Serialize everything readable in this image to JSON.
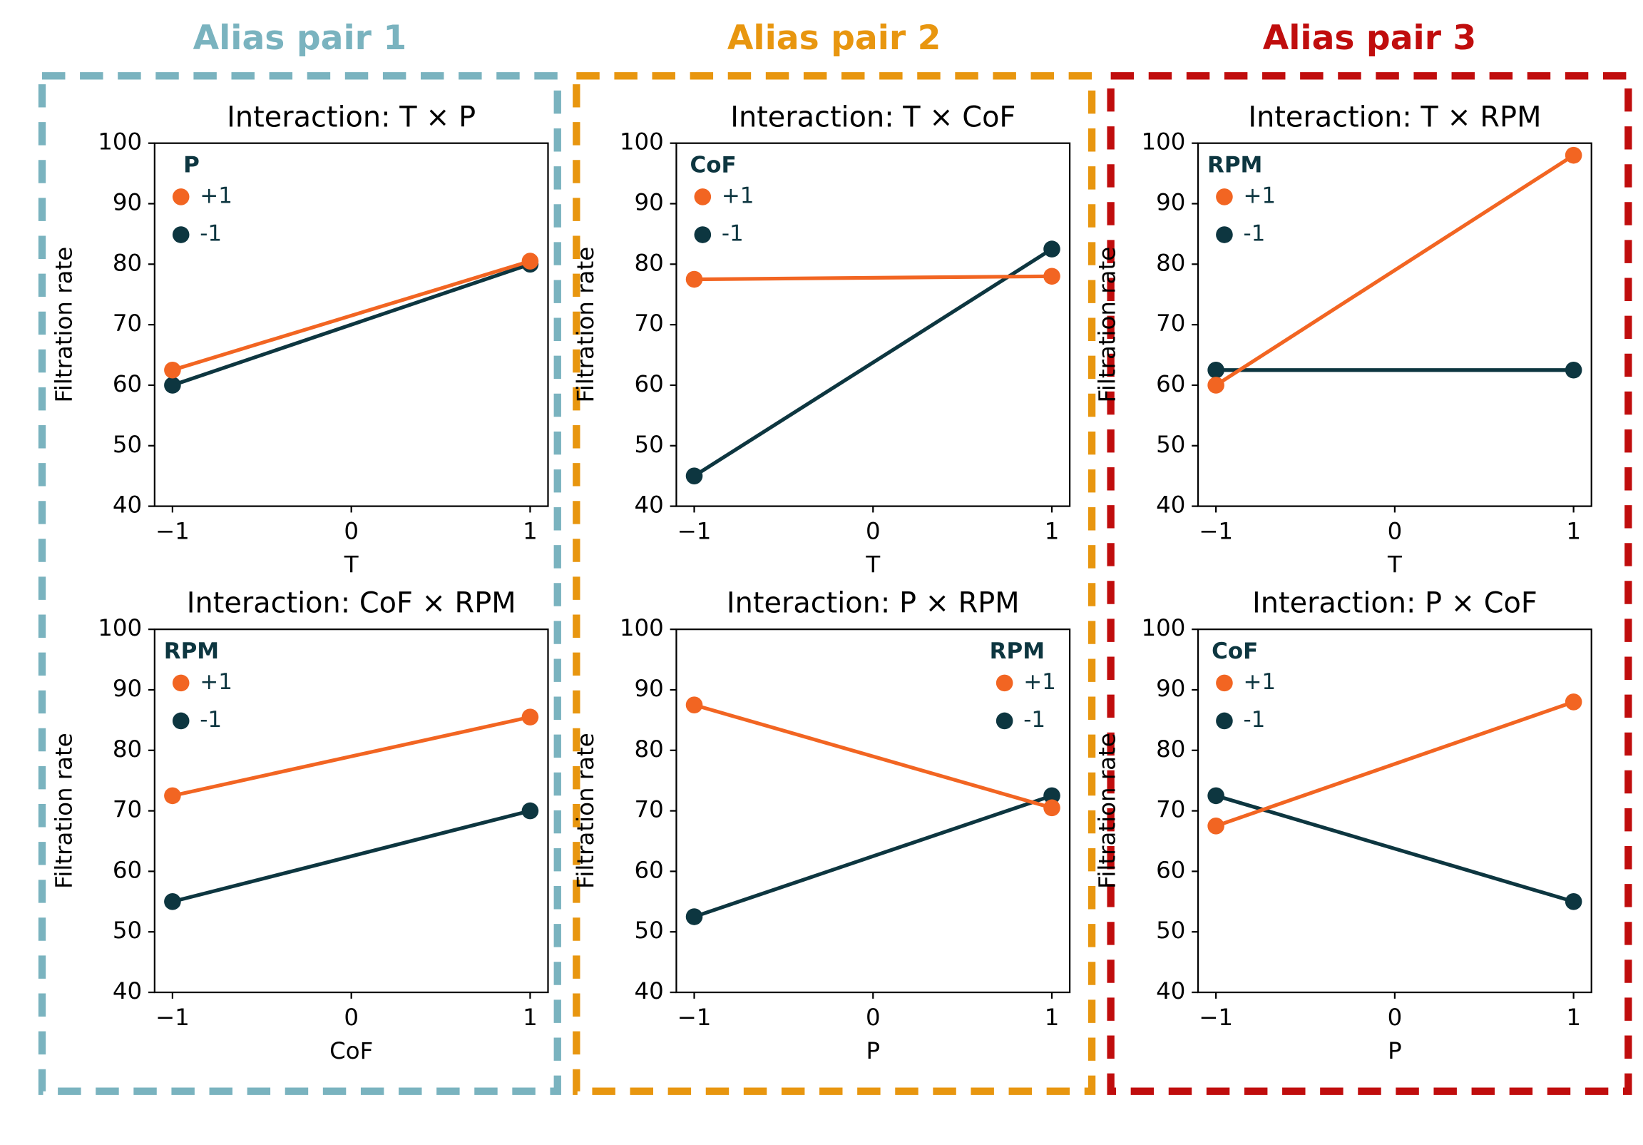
{
  "groups": [
    {
      "title": "Alias pair 1",
      "color": "#7ab3bf"
    },
    {
      "title": "Alias pair 2",
      "color": "#e8960f"
    },
    {
      "title": "Alias pair 3",
      "color": "#c00d0d"
    }
  ],
  "chart_data": [
    {
      "type": "line",
      "title": "Interaction: T × P",
      "x_label": "T",
      "y_label": "Filtration rate",
      "legend_title": "P",
      "legend": "upper left",
      "x": [
        -1,
        1
      ],
      "xlim": [
        -1.1,
        1.1
      ],
      "xticks": [
        {
          "value": -1,
          "label": "−1"
        },
        0,
        1
      ],
      "ylim": [
        40,
        100
      ],
      "yticks": [
        40,
        50,
        60,
        70,
        80,
        90,
        100
      ],
      "series": [
        {
          "name": "+1",
          "color": "#f26522",
          "values": [
            62.5,
            80.5
          ]
        },
        {
          "name": "-1",
          "color": "#0d3640",
          "values": [
            60,
            80
          ]
        }
      ]
    },
    {
      "type": "line",
      "title": "Interaction: T × CoF",
      "x_label": "T",
      "y_label": "Filtration rate",
      "legend_title": "CoF",
      "legend": "upper left",
      "x": [
        -1,
        1
      ],
      "xlim": [
        -1.1,
        1.1
      ],
      "xticks": [
        {
          "value": -1,
          "label": "−1"
        },
        0,
        1
      ],
      "ylim": [
        40,
        100
      ],
      "yticks": [
        40,
        50,
        60,
        70,
        80,
        90,
        100
      ],
      "series": [
        {
          "name": "+1",
          "color": "#f26522",
          "values": [
            77.5,
            78
          ]
        },
        {
          "name": "-1",
          "color": "#0d3640",
          "values": [
            45,
            82.5
          ]
        }
      ]
    },
    {
      "type": "line",
      "title": "Interaction: T × RPM",
      "x_label": "T",
      "y_label": "Filtration rate",
      "legend_title": "RPM",
      "legend": "upper left",
      "x": [
        -1,
        1
      ],
      "xlim": [
        -1.1,
        1.1
      ],
      "xticks": [
        {
          "value": -1,
          "label": "−1"
        },
        0,
        1
      ],
      "ylim": [
        40,
        100
      ],
      "yticks": [
        40,
        50,
        60,
        70,
        80,
        90,
        100
      ],
      "series": [
        {
          "name": "+1",
          "color": "#f26522",
          "values": [
            60,
            98
          ]
        },
        {
          "name": "-1",
          "color": "#0d3640",
          "values": [
            62.5,
            62.5
          ]
        }
      ]
    },
    {
      "type": "line",
      "title": "Interaction: CoF × RPM",
      "x_label": "CoF",
      "y_label": "Filtration rate",
      "legend_title": "RPM",
      "legend": "upper left",
      "x": [
        -1,
        1
      ],
      "xlim": [
        -1.1,
        1.1
      ],
      "xticks": [
        {
          "value": -1,
          "label": "−1"
        },
        0,
        1
      ],
      "ylim": [
        40,
        100
      ],
      "yticks": [
        40,
        50,
        60,
        70,
        80,
        90,
        100
      ],
      "series": [
        {
          "name": "+1",
          "color": "#f26522",
          "values": [
            72.5,
            85.5
          ]
        },
        {
          "name": "-1",
          "color": "#0d3640",
          "values": [
            55,
            70
          ]
        }
      ]
    },
    {
      "type": "line",
      "title": "Interaction: P × RPM",
      "x_label": "P",
      "y_label": "Filtration rate",
      "legend_title": "RPM",
      "legend": "upper right",
      "x": [
        -1,
        1
      ],
      "xlim": [
        -1.1,
        1.1
      ],
      "xticks": [
        {
          "value": -1,
          "label": "−1"
        },
        0,
        1
      ],
      "ylim": [
        40,
        100
      ],
      "yticks": [
        40,
        50,
        60,
        70,
        80,
        90,
        100
      ],
      "series": [
        {
          "name": "+1",
          "color": "#f26522",
          "values": [
            87.5,
            70.5
          ]
        },
        {
          "name": "-1",
          "color": "#0d3640",
          "values": [
            52.5,
            72.5
          ]
        }
      ]
    },
    {
      "type": "line",
      "title": "Interaction: P × CoF",
      "x_label": "P",
      "y_label": "Filtration rate",
      "legend_title": "CoF",
      "legend": "upper left",
      "x": [
        -1,
        1
      ],
      "xlim": [
        -1.1,
        1.1
      ],
      "xticks": [
        {
          "value": -1,
          "label": "−1"
        },
        0,
        1
      ],
      "ylim": [
        40,
        100
      ],
      "yticks": [
        40,
        50,
        60,
        70,
        80,
        90,
        100
      ],
      "series": [
        {
          "name": "+1",
          "color": "#f26522",
          "values": [
            67.5,
            88
          ]
        },
        {
          "name": "-1",
          "color": "#0d3640",
          "values": [
            72.5,
            55
          ]
        }
      ]
    }
  ]
}
